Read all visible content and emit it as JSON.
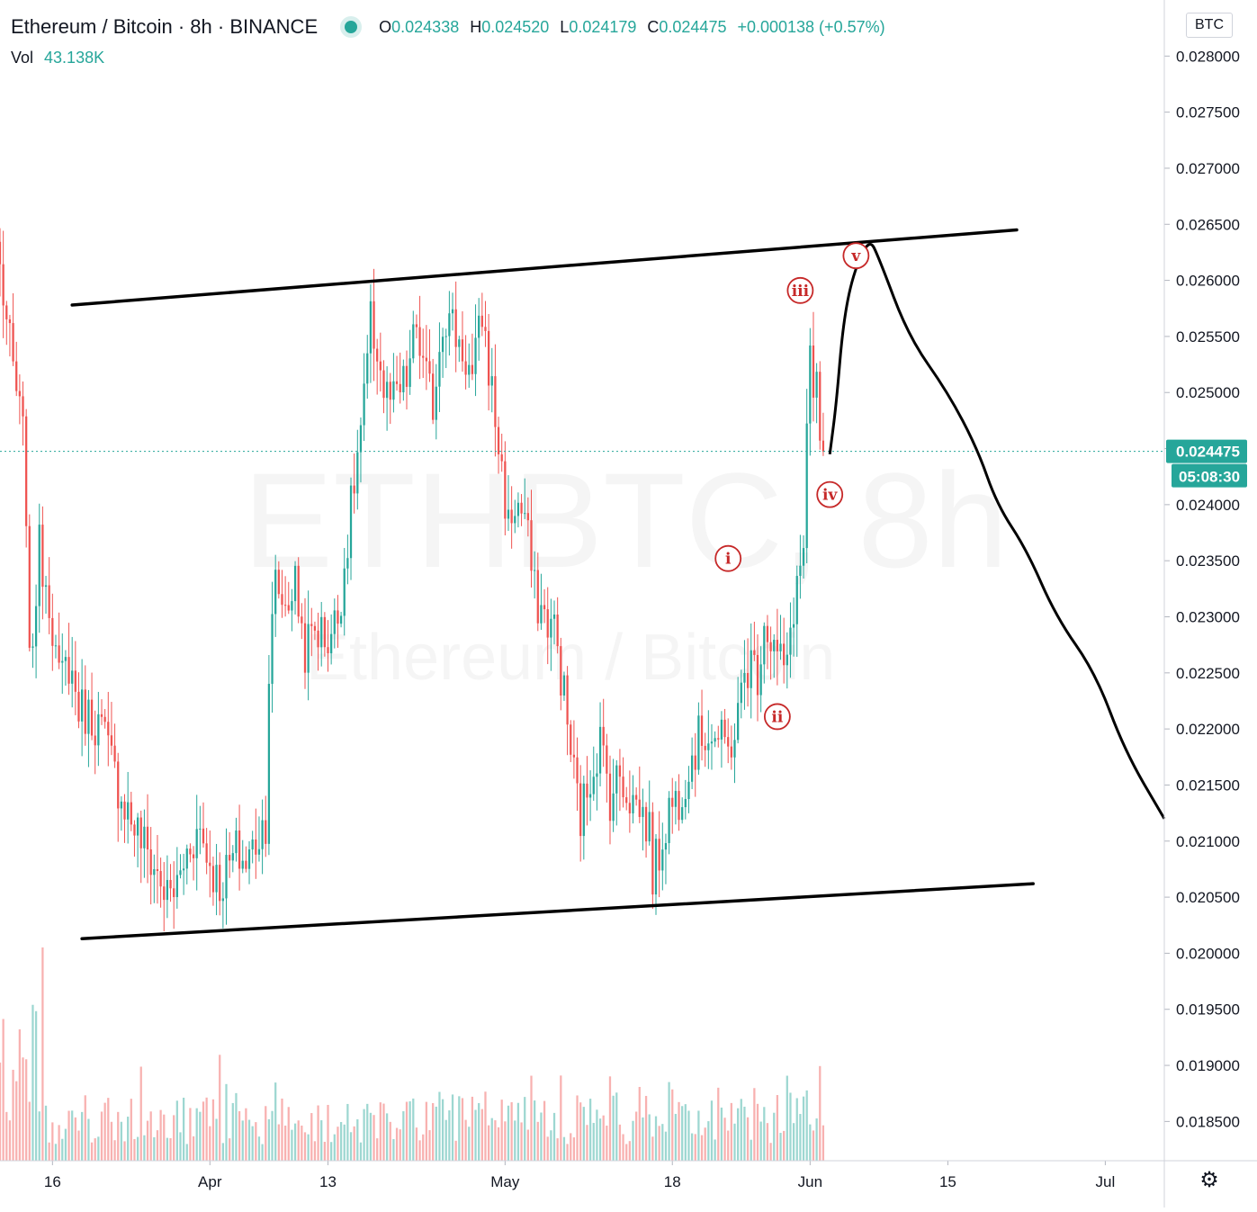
{
  "header": {
    "symbol": "Ethereum / Bitcoin · 8h · BINANCE",
    "open_label": "O",
    "open": "0.024338",
    "high_label": "H",
    "high": "0.024520",
    "low_label": "L",
    "low": "0.024179",
    "close_label": "C",
    "close": "0.024475",
    "change": "+0.000138 (+0.57%)",
    "vol_label": "Vol",
    "vol": "43.138K",
    "status_dot_icon": "live-status-dot-icon"
  },
  "watermark": {
    "ticker": "ETHBTC, 8h",
    "name": "Ethereum / Bitcoin"
  },
  "currency_button": "BTC",
  "settings_icon": "gear-icon",
  "last_price_badge": "0.024475",
  "countdown_badge": "05:08:30",
  "colors": {
    "up": "#26a69a",
    "down": "#ef5350",
    "annotation": "#c62828",
    "drawing": "#000000"
  },
  "chart_data": {
    "type": "candlestick",
    "title": "Ethereum / Bitcoin · 8h · BINANCE",
    "xlabel": "",
    "ylabel": "",
    "y_ticks": [
      "0.028000",
      "0.027500",
      "0.027000",
      "0.026500",
      "0.026000",
      "0.025500",
      "0.025000",
      "0.024500",
      "0.024000",
      "0.023500",
      "0.023000",
      "0.022500",
      "0.022000",
      "0.021500",
      "0.021000",
      "0.020500",
      "0.020000",
      "0.019500",
      "0.019000",
      "0.018500"
    ],
    "ylim": [
      0.01815,
      0.0285
    ],
    "x_ticks": [
      "16",
      "Apr",
      "13",
      "May",
      "18",
      "Jun",
      "15",
      "Jul"
    ],
    "x_tick_dates": [
      "2020-03-16",
      "2020-04-01",
      "2020-04-13",
      "2020-05-01",
      "2020-05-18",
      "2020-06-01",
      "2020-06-15",
      "2020-07-01"
    ],
    "xlim": [
      "2020-03-10T16:00",
      "2020-07-07T00:00"
    ],
    "last_price": 0.024475,
    "price_path": [
      [
        "2020-03-10T16:00",
        0.0261
      ],
      [
        "2020-03-11T16:00",
        0.0254
      ],
      [
        "2020-03-13T00:00",
        0.0246
      ],
      [
        "2020-03-13T08:00",
        0.024
      ],
      [
        "2020-03-13T16:00",
        0.0225
      ],
      [
        "2020-03-14T16:00",
        0.0236
      ],
      [
        "2020-03-15T16:00",
        0.0232
      ],
      [
        "2020-03-16T16:00",
        0.0224
      ],
      [
        "2020-03-17T16:00",
        0.0226
      ],
      [
        "2020-03-18T16:00",
        0.0222
      ],
      [
        "2020-03-20T00:00",
        0.0221
      ],
      [
        "2020-03-21T00:00",
        0.022
      ],
      [
        "2020-03-22T16:00",
        0.0215
      ],
      [
        "2020-03-24T00:00",
        0.0212
      ],
      [
        "2020-03-25T16:00",
        0.0209
      ],
      [
        "2020-03-26T16:00",
        0.0207
      ],
      [
        "2020-03-27T16:00",
        0.0205
      ],
      [
        "2020-03-28T16:00",
        0.0206
      ],
      [
        "2020-03-30T00:00",
        0.021
      ],
      [
        "2020-03-31T00:00",
        0.0211
      ],
      [
        "2020-04-01T00:00",
        0.0208
      ],
      [
        "2020-04-02T00:00",
        0.0206
      ],
      [
        "2020-04-03T16:00",
        0.0209
      ],
      [
        "2020-04-04T16:00",
        0.0208
      ],
      [
        "2020-04-05T16:00",
        0.021
      ],
      [
        "2020-04-06T16:00",
        0.0212
      ],
      [
        "2020-04-07T00:00",
        0.0225
      ],
      [
        "2020-04-07T16:00",
        0.0233
      ],
      [
        "2020-04-08T16:00",
        0.0231
      ],
      [
        "2020-04-09T16:00",
        0.0233
      ],
      [
        "2020-04-10T16:00",
        0.0227
      ],
      [
        "2020-04-11T16:00",
        0.0229
      ],
      [
        "2020-04-13T00:00",
        0.0228
      ],
      [
        "2020-04-14T00:00",
        0.023
      ],
      [
        "2020-04-15T00:00",
        0.0237
      ],
      [
        "2020-04-15T16:00",
        0.0242
      ],
      [
        "2020-04-16T16:00",
        0.0249
      ],
      [
        "2020-04-17T08:00",
        0.0256
      ],
      [
        "2020-04-18T00:00",
        0.0254
      ],
      [
        "2020-04-18T16:00",
        0.025
      ],
      [
        "2020-04-19T16:00",
        0.0249
      ],
      [
        "2020-04-21T00:00",
        0.0251
      ],
      [
        "2020-04-22T00:00",
        0.0256
      ],
      [
        "2020-04-22T16:00",
        0.0252
      ],
      [
        "2020-04-23T16:00",
        0.0249
      ],
      [
        "2020-04-24T16:00",
        0.0257
      ],
      [
        "2020-04-25T16:00",
        0.0256
      ],
      [
        "2020-04-27T00:00",
        0.0253
      ],
      [
        "2020-04-27T16:00",
        0.0251
      ],
      [
        "2020-04-28T16:00",
        0.0257
      ],
      [
        "2020-04-29T16:00",
        0.025
      ],
      [
        "2020-04-30T16:00",
        0.0243
      ],
      [
        "2020-05-01T08:00",
        0.0238
      ],
      [
        "2020-05-02T00:00",
        0.024
      ],
      [
        "2020-05-03T00:00",
        0.0239
      ],
      [
        "2020-05-04T00:00",
        0.0232
      ],
      [
        "2020-05-05T00:00",
        0.023
      ],
      [
        "2020-05-06T00:00",
        0.0229
      ],
      [
        "2020-05-07T00:00",
        0.0223
      ],
      [
        "2020-05-07T16:00",
        0.0218
      ],
      [
        "2020-05-08T16:00",
        0.0212
      ],
      [
        "2020-05-09T16:00",
        0.0216
      ],
      [
        "2020-05-10T16:00",
        0.0219
      ],
      [
        "2020-05-11T16:00",
        0.0214
      ],
      [
        "2020-05-12T16:00",
        0.0216
      ],
      [
        "2020-05-13T16:00",
        0.0214
      ],
      [
        "2020-05-14T16:00",
        0.0213
      ],
      [
        "2020-05-15T16:00",
        0.0211
      ],
      [
        "2020-05-16T00:00",
        0.0207
      ],
      [
        "2020-05-16T16:00",
        0.0209
      ],
      [
        "2020-05-17T16:00",
        0.0213
      ],
      [
        "2020-05-18T16:00",
        0.0214
      ],
      [
        "2020-05-19T16:00",
        0.0217
      ],
      [
        "2020-05-20T16:00",
        0.0219
      ],
      [
        "2020-05-21T16:00",
        0.022
      ],
      [
        "2020-05-22T16:00",
        0.0219
      ],
      [
        "2020-05-23T16:00",
        0.0218
      ],
      [
        "2020-05-24T16:00",
        0.0221
      ],
      [
        "2020-05-25T08:00",
        0.0225
      ],
      [
        "2020-05-26T00:00",
        0.0226
      ],
      [
        "2020-05-26T16:00",
        0.0225
      ],
      [
        "2020-05-27T08:00",
        0.023
      ],
      [
        "2020-05-28T00:00",
        0.0228
      ],
      [
        "2020-05-29T00:00",
        0.0226
      ],
      [
        "2020-05-29T16:00",
        0.0225
      ],
      [
        "2020-05-30T00:00",
        0.0229
      ],
      [
        "2020-05-30T16:00",
        0.0233
      ],
      [
        "2020-05-31T08:00",
        0.0236
      ],
      [
        "2020-05-31T16:00",
        0.0246
      ],
      [
        "2020-06-01T00:00",
        0.0252
      ],
      [
        "2020-06-01T08:00",
        0.0249
      ],
      [
        "2020-06-01T16:00",
        0.0251
      ],
      [
        "2020-06-02T00:00",
        0.0244
      ],
      [
        "2020-06-02T08:00",
        0.02448
      ]
    ],
    "volume_scale_max": 100,
    "channel_upper": {
      "from": [
        "2020-03-18T00:00",
        0.02578
      ],
      "to": [
        "2020-06-22T00:00",
        0.02645
      ]
    },
    "channel_lower": {
      "from": [
        "2020-03-19T00:00",
        0.02013
      ],
      "to": [
        "2020-06-23T16:00",
        0.02062
      ]
    },
    "projection_path": [
      [
        "2020-06-03T00:00",
        0.02445
      ],
      [
        "2020-06-03T16:00",
        0.0249
      ],
      [
        "2020-06-04T08:00",
        0.0256
      ],
      [
        "2020-06-05T08:00",
        0.02605
      ],
      [
        "2020-06-07T00:00",
        0.02638
      ],
      [
        "2020-06-08T00:00",
        0.0262
      ],
      [
        "2020-06-11T00:00",
        0.0255
      ],
      [
        "2020-06-15T00:00",
        0.025
      ],
      [
        "2020-06-18T00:00",
        0.0245
      ],
      [
        "2020-06-20T00:00",
        0.024
      ],
      [
        "2020-06-23T00:00",
        0.0236
      ],
      [
        "2020-06-26T00:00",
        0.023
      ],
      [
        "2020-06-30T00:00",
        0.0225
      ],
      [
        "2020-07-03T00:00",
        0.0218
      ],
      [
        "2020-07-07T00:00",
        0.0212
      ]
    ],
    "wave_labels": [
      {
        "text": "i",
        "x": "2020-05-23T16:00",
        "y": 0.02352
      },
      {
        "text": "ii",
        "x": "2020-05-28T16:00",
        "y": 0.02211
      },
      {
        "text": "iii",
        "x": "2020-05-31T00:00",
        "y": 0.02591
      },
      {
        "text": "iv",
        "x": "2020-06-03T00:00",
        "y": 0.02409
      },
      {
        "text": "v",
        "x": "2020-06-05T16:00",
        "y": 0.02622
      }
    ]
  }
}
